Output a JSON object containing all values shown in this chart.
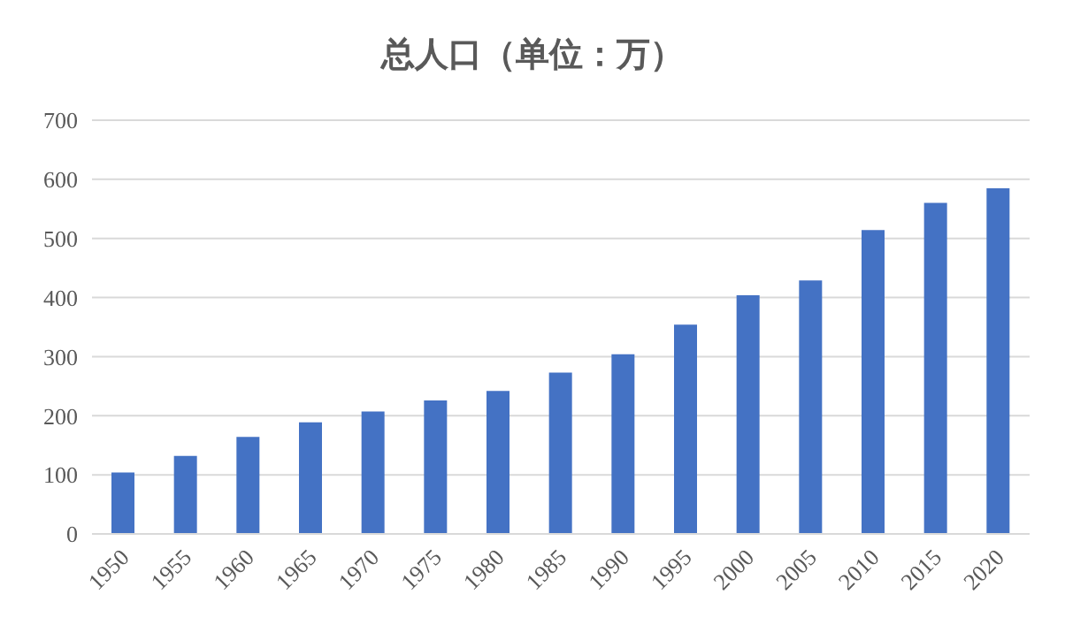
{
  "chart_data": {
    "type": "bar",
    "title": "总人口（单位：万）",
    "categories": [
      "1950",
      "1955",
      "1960",
      "1965",
      "1970",
      "1975",
      "1980",
      "1985",
      "1990",
      "1995",
      "2000",
      "2005",
      "2010",
      "2015",
      "2020"
    ],
    "values": [
      104,
      132,
      164,
      189,
      207,
      226,
      242,
      273,
      304,
      354,
      404,
      429,
      514,
      560,
      585
    ],
    "color": "#4472c4",
    "ylim": [
      0,
      700
    ],
    "yticks": [
      0,
      100,
      200,
      300,
      400,
      500,
      600,
      700
    ],
    "grid": "y"
  }
}
